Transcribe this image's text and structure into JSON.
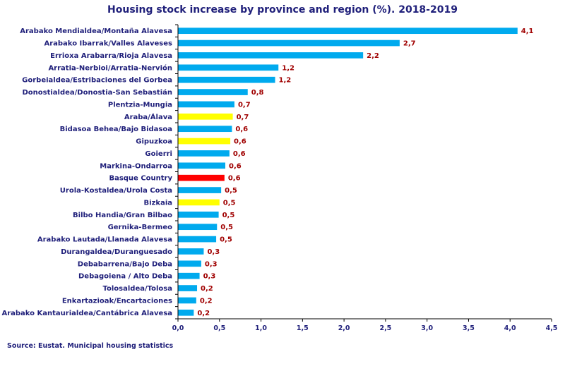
{
  "chart_data": {
    "type": "bar",
    "orientation": "horizontal",
    "title": "Housing stock increase by province and region (%). 2018-2019",
    "source": "Source:  Eustat. Municipal  housing statistics",
    "xlim": [
      0,
      4.5
    ],
    "xticks": [
      "0,0",
      "0,5",
      "1,0",
      "1,5",
      "2,0",
      "2,5",
      "3,0",
      "3,5",
      "4,0",
      "4,5"
    ],
    "categories": [
      "Arabako Mendialdea/Montaña Alavesa",
      "Arabako Ibarrak/Valles Alaveses",
      "Errioxa Arabarra/Rioja Alavesa",
      "Arratia-Nerbioi/Arratia-Nervión",
      "Gorbeialdea/Estribaciones del Gorbea",
      "Donostialdea/Donostia-San Sebastián",
      "Plentzia-Mungia",
      "Araba/Álava",
      "Bidasoa Behea/Bajo Bidasoa",
      "Gipuzkoa",
      "Goierri",
      "Markina-Ondarroa",
      "Basque Country",
      "Urola-Kostaldea/Urola Costa",
      "Bizkaia",
      "Bilbo Handia/Gran Bilbao",
      "Gernika-Bermeo",
      "Arabako Lautada/Llanada Alavesa",
      "Durangaldea/Duranguesado",
      "Debabarrena/Bajo Deba",
      "Debagoiena / Alto Deba",
      "Tolosaldea/Tolosa",
      "Enkartazioak/Encartaciones",
      "Arabako Kantaurialdea/Cantábrica Alavesa"
    ],
    "values": [
      4.09,
      2.67,
      2.23,
      1.21,
      1.17,
      0.84,
      0.68,
      0.66,
      0.65,
      0.63,
      0.62,
      0.57,
      0.56,
      0.52,
      0.5,
      0.49,
      0.47,
      0.46,
      0.31,
      0.28,
      0.26,
      0.23,
      0.22,
      0.19
    ],
    "value_labels": [
      "4,1",
      "2,7",
      "2,2",
      "1,2",
      "1,2",
      "0,8",
      "0,7",
      "0,7",
      "0,6",
      "0,6",
      "0,6",
      "0,6",
      "0,6",
      "0,5",
      "0,5",
      "0,5",
      "0,5",
      "0,5",
      "0,3",
      "0,3",
      "0,3",
      "0,2",
      "0,2",
      "0,2"
    ],
    "bar_colors": [
      "#00aaee",
      "#00aaee",
      "#00aaee",
      "#00aaee",
      "#00aaee",
      "#00aaee",
      "#00aaee",
      "#ffff00",
      "#00aaee",
      "#ffff00",
      "#00aaee",
      "#00aaee",
      "#ff0000",
      "#00aaee",
      "#ffff00",
      "#00aaee",
      "#00aaee",
      "#00aaee",
      "#00aaee",
      "#00aaee",
      "#00aaee",
      "#00aaee",
      "#00aaee",
      "#00aaee"
    ],
    "grid": false,
    "legend": "none"
  }
}
